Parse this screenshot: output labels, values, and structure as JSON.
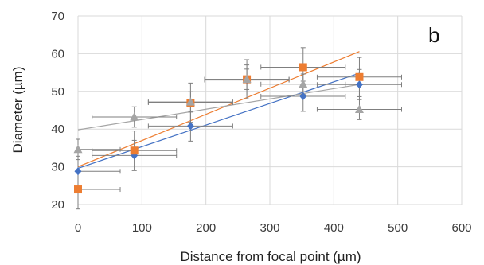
{
  "chart_data": {
    "type": "scatter",
    "panel_label": "b",
    "xlabel": "Distance from focal point (µm)",
    "ylabel": "Diameter (µm)",
    "xlim": [
      0,
      600
    ],
    "ylim": [
      20,
      70
    ],
    "xticks": [
      0,
      100,
      200,
      300,
      400,
      500,
      600
    ],
    "yticks": [
      20,
      30,
      40,
      50,
      60,
      70
    ],
    "grid": true,
    "legend": "none",
    "colors": {
      "blue": "#4472C4",
      "orange": "#ED7D31",
      "gray": "#A5A5A5",
      "grid": "#d9d9d9",
      "errorbar": "#7f7f7f"
    },
    "series": [
      {
        "marker": "diamond",
        "color": "#4472C4",
        "x": [
          0,
          88,
          176,
          264,
          352,
          440
        ],
        "y": [
          28.8,
          33.0,
          40.8,
          53.0,
          48.7,
          51.8
        ],
        "xerr": [
          66,
          66,
          66,
          66,
          66,
          66
        ],
        "yerr": [
          4,
          4,
          4,
          4,
          4,
          4
        ],
        "trendline": {
          "slope": 0.0573,
          "intercept": 29.6
        }
      },
      {
        "marker": "square",
        "color": "#ED7D31",
        "x": [
          0,
          88,
          176,
          264,
          352,
          440
        ],
        "y": [
          24.0,
          34.3,
          47.0,
          53.2,
          56.4,
          53.8
        ],
        "xerr": [
          66,
          66,
          66,
          66,
          66,
          66
        ],
        "yerr": [
          5.2,
          5.2,
          5.2,
          5.2,
          5.2,
          5.2
        ],
        "trendline": {
          "slope": 0.0695,
          "intercept": 30.0
        }
      },
      {
        "marker": "triangle",
        "color": "#A5A5A5",
        "x": [
          0,
          88,
          176,
          264,
          352,
          440
        ],
        "y": [
          34.6,
          43.2,
          47.2,
          53.2,
          51.9,
          45.2
        ],
        "xerr": [
          66,
          66,
          66,
          66,
          66,
          66
        ],
        "yerr": [
          2.7,
          2.7,
          2.7,
          2.7,
          2.7,
          2.7
        ],
        "trendline": {
          "slope": 0.0273,
          "intercept": 39.8
        }
      }
    ]
  }
}
